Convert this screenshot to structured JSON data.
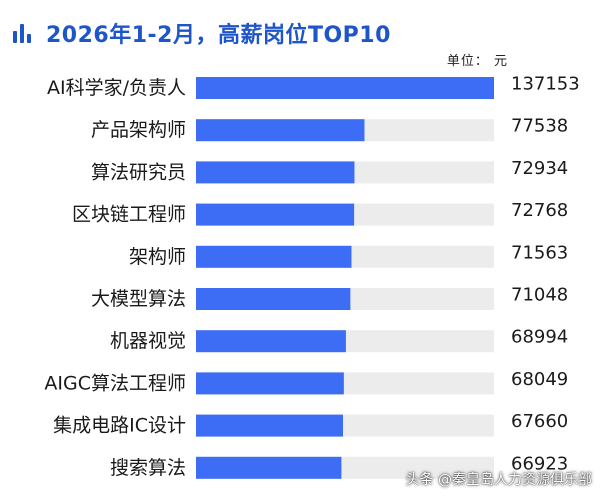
{
  "title": "2026年1-2月，高薪岗位TOP10",
  "unit_label": "单位：  元",
  "watermark": "头条 @秦皇岛人力资源俱乐部",
  "colors": {
    "title": "#1e56c9",
    "bar": "#3d6df5",
    "track": "#ececec"
  },
  "icons": {
    "title_icon": "bar-chart-icon"
  },
  "chart_data": {
    "type": "bar",
    "orientation": "horizontal",
    "title": "2026年1-2月，高薪岗位TOP10",
    "unit": "元",
    "categories": [
      "AI科学家/负责人",
      "产品架构师",
      "算法研究员",
      "区块链工程师",
      "架构师",
      "大模型算法",
      "机器视觉",
      "AIGC算法工程师",
      "集成电路IC设计",
      "搜索算法"
    ],
    "values": [
      137153,
      77538,
      72934,
      72768,
      71563,
      71048,
      68994,
      68049,
      67660,
      66923
    ],
    "value_labels": [
      "137153",
      "77538",
      "72934",
      "72768",
      "71563",
      "71048",
      "68994",
      "68049",
      "67660",
      "66923"
    ],
    "xlim": [
      0,
      137153
    ],
    "grid": false,
    "legend": "none"
  }
}
